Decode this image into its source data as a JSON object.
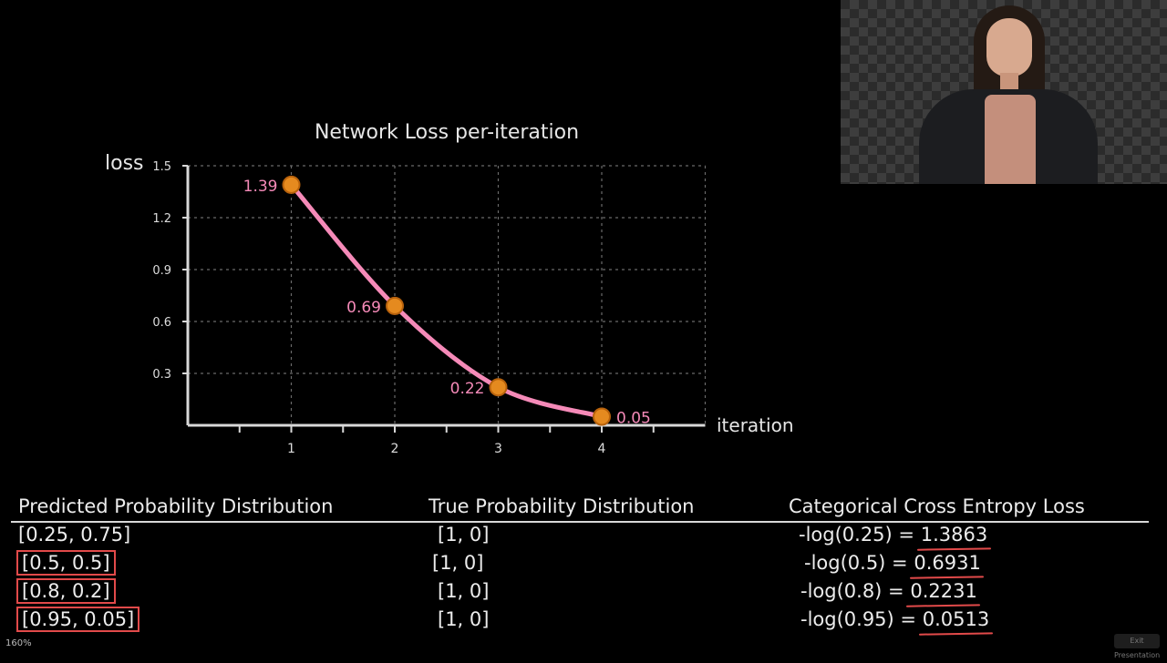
{
  "chart_data": {
    "type": "line",
    "title": "Network Loss per-iteration",
    "xlabel": "iteration",
    "ylabel": "loss",
    "x": [
      1,
      2,
      3,
      4
    ],
    "values": [
      1.39,
      0.69,
      0.22,
      0.05
    ],
    "point_labels": [
      "1.39",
      "0.69",
      "0.22",
      "0.05"
    ],
    "xticks": [
      "1",
      "2",
      "3",
      "4"
    ],
    "yticks": [
      "0.3",
      "0.6",
      "0.9",
      "1.2",
      "1.5"
    ],
    "xlim": [
      0,
      5
    ],
    "ylim": [
      0,
      1.5
    ],
    "grid": true,
    "line_color": "#f58ab8",
    "marker_color": "#e58a1f",
    "label_color": "#f58ab8"
  },
  "table": {
    "headers": [
      "Predicted Probability Distribution",
      "True Probability Distribution",
      "Categorical Cross Entropy Loss"
    ],
    "rows": [
      {
        "predicted": "[0.25, 0.75]",
        "true": "[1, 0]",
        "expr": "-log(0.25) =",
        "result": "1.3863"
      },
      {
        "predicted": "[0.5, 0.5]",
        "true": "[1, 0]",
        "expr": "-log(0.5) =",
        "result": "0.6931"
      },
      {
        "predicted": "[0.8, 0.2]",
        "true": "[1, 0]",
        "expr": "-log(0.8) =",
        "result": "0.2231"
      },
      {
        "predicted": "[0.95, 0.05]",
        "true": "[1, 0]",
        "expr": "-log(0.95) =",
        "result": "0.0513"
      }
    ],
    "highlight_color": "#e24a4a"
  },
  "status": {
    "zoom": "160%",
    "exit_label": "Exit Presentation"
  }
}
